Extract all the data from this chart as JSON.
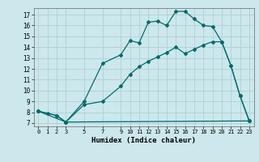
{
  "xlabel": "Humidex (Indice chaleur)",
  "bg_color": "#cce8ec",
  "grid_color": "#b0d0d4",
  "line_color": "#006b6b",
  "xlim": [
    -0.5,
    23.5
  ],
  "ylim": [
    6.7,
    17.6
  ],
  "yticks": [
    7,
    8,
    9,
    10,
    11,
    12,
    13,
    14,
    15,
    16,
    17
  ],
  "xticks": [
    0,
    1,
    2,
    3,
    5,
    7,
    9,
    10,
    11,
    12,
    13,
    14,
    15,
    16,
    17,
    18,
    19,
    20,
    21,
    22,
    23
  ],
  "line1_x": [
    0,
    1,
    2,
    3,
    5,
    7,
    9,
    10,
    11,
    12,
    13,
    14,
    15,
    16,
    17,
    18,
    19,
    20,
    21,
    22,
    23
  ],
  "line1_y": [
    8.1,
    7.9,
    7.7,
    7.1,
    9.0,
    12.5,
    13.3,
    14.6,
    14.4,
    16.3,
    16.4,
    16.0,
    17.3,
    17.3,
    16.6,
    16.0,
    15.9,
    14.5,
    12.3,
    9.5,
    7.2
  ],
  "line2_x": [
    0,
    2,
    3,
    5,
    7,
    9,
    10,
    11,
    12,
    13,
    14,
    15,
    16,
    17,
    18,
    19,
    20,
    21,
    22,
    23
  ],
  "line2_y": [
    8.1,
    7.7,
    7.1,
    8.7,
    9.0,
    10.4,
    11.5,
    12.2,
    12.7,
    13.1,
    13.5,
    14.0,
    13.4,
    13.8,
    14.2,
    14.5,
    14.5,
    12.3,
    9.5,
    7.2
  ],
  "line3_x": [
    0,
    3,
    23
  ],
  "line3_y": [
    8.1,
    7.1,
    7.2
  ]
}
